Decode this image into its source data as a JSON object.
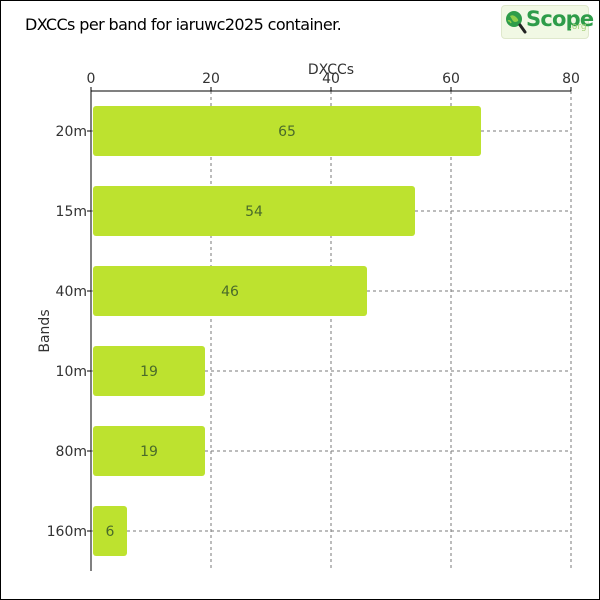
{
  "chart_data": {
    "type": "bar",
    "orientation": "horizontal",
    "title": "DXCCs per band for iaruwc2025 container.",
    "xlabel": "DXCCs",
    "ylabel": "Bands",
    "categories": [
      "20m",
      "15m",
      "40m",
      "10m",
      "80m",
      "160m"
    ],
    "values": [
      65,
      54,
      46,
      19,
      19,
      6
    ],
    "xlim": [
      0,
      80
    ],
    "xticks": [
      0,
      20,
      40,
      60,
      80
    ],
    "x_axis_position": "top",
    "grid": true,
    "bar_color": "#bde22f",
    "label_color": "#4a6b2a"
  },
  "logo": {
    "word": "Scope",
    "suffix": ".org",
    "icon": "magnifier-globe-icon",
    "color": "#2e9c49"
  }
}
